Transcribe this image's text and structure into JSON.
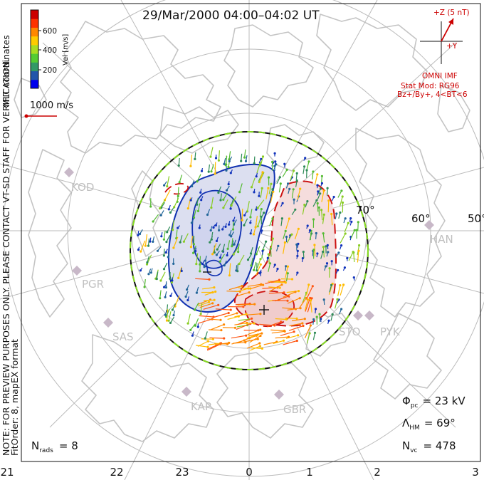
{
  "title": "29/Mar/2000 04:00–04:02 UT",
  "side_note_line1": "NOTE: FOR PREVIEW PURPOSES ONLY. PLEASE CONTACT VT-SD STAFF FOR VERIFICATION.",
  "side_note_line2": "FitOrder: 8, mapEX format",
  "coords_label": "MLT coordinates",
  "colorbar": {
    "unit_label": "Vel [m/s]",
    "ticks": [
      "600",
      "400",
      "200"
    ],
    "colors": [
      "#0000ee",
      "#2255aa",
      "#339966",
      "#55cc33",
      "#aadd22",
      "#ffcc00",
      "#ff8800",
      "#ff3300",
      "#cc0000"
    ]
  },
  "vector_scale_label": "1000 m/s",
  "imf": {
    "z_label": "+Z (5 nT)",
    "y_label": "+Y",
    "source": "OMNI IMF",
    "stat_mod": "Stat Mod: RG96",
    "condition": "Bz+/By+, 4<BT<6"
  },
  "stats": {
    "phi_symbol": "Φ",
    "phi_sub": "pc",
    "phi_value": "= 23 kV",
    "lambda_symbol": "Λ",
    "lambda_sub": "HM",
    "lambda_value": "= 69°",
    "nvc_symbol": "N",
    "nvc_sub": "vc",
    "nvc_value": "= 478",
    "nrads_symbol": "N",
    "nrads_sub": "rads",
    "nrads_value": "= 8"
  },
  "latitude_labels": [
    "70°",
    "60°",
    "50°"
  ],
  "stations": [
    "KOD",
    "PGR",
    "SAS",
    "KAP",
    "GBR",
    "STO",
    "PYK",
    "HAN"
  ],
  "mlt_axis": [
    "21",
    "22",
    "23",
    "0",
    "1",
    "2",
    "3"
  ],
  "theme": {
    "grid_color": "#bbbbbb",
    "coast_color": "#c4c4c4",
    "contour_neg": "#1030b0",
    "contour_pos": "#cc1111",
    "neg_fill": "#dcdff0",
    "pos_fill": "#f5dddd",
    "hmb_color": "#111111",
    "hmb_dash": "#88dd22",
    "station_color": "#c8b8c8",
    "imf_color": "#cc0000"
  }
}
